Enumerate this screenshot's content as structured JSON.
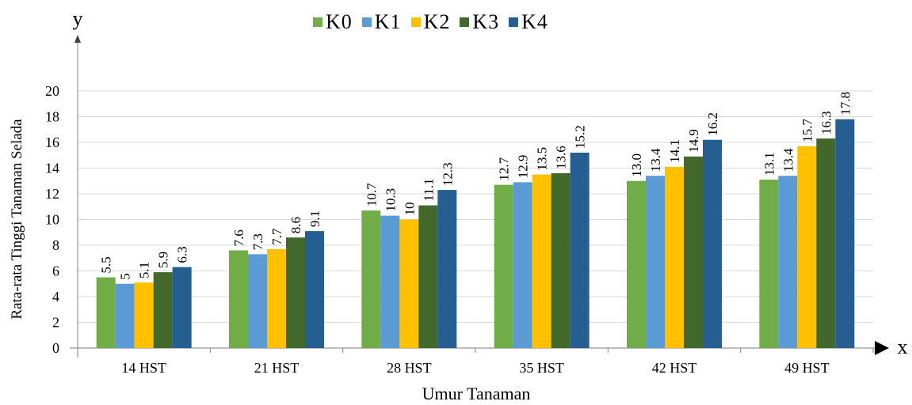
{
  "chart_data": {
    "type": "bar",
    "title": "",
    "xlabel": "Umur Tanaman",
    "ylabel": "Rata-rata Tinggi Tanaman Selada",
    "x_axis_letter": "x",
    "y_axis_letter": "y",
    "categories": [
      "14 HST",
      "21 HST",
      "28 HST",
      "35 HST",
      "42 HST",
      "49 HST"
    ],
    "series": [
      {
        "name": "K0",
        "color": "#70ad47",
        "values": [
          5.5,
          7.6,
          10.7,
          12.7,
          13.0,
          13.1
        ],
        "labels": [
          "5.5",
          "7.6",
          "10.7",
          "12.7",
          "13.0",
          "13.1"
        ]
      },
      {
        "name": "K1",
        "color": "#5b9bd5",
        "values": [
          5,
          7.3,
          10.3,
          12.9,
          13.4,
          13.4
        ],
        "labels": [
          "5",
          "7.3",
          "10.3",
          "12.9",
          "13.4",
          "13.4"
        ]
      },
      {
        "name": "K2",
        "color": "#ffc000",
        "values": [
          5.1,
          7.7,
          10,
          13.5,
          14.1,
          15.7
        ],
        "labels": [
          "5.1",
          "7.7",
          "10",
          "13.5",
          "14.1",
          "15.7"
        ]
      },
      {
        "name": "K3",
        "color": "#43682b",
        "values": [
          5.9,
          8.6,
          11.1,
          13.6,
          14.9,
          16.3
        ],
        "labels": [
          "5.9",
          "8.6",
          "11.1",
          "13.6",
          "14.9",
          "16.3"
        ]
      },
      {
        "name": "K4",
        "color": "#255e91",
        "values": [
          6.3,
          9.1,
          12.3,
          15.2,
          16.2,
          17.8
        ],
        "labels": [
          "6.3",
          "9.1",
          "12.3",
          "15.2",
          "16.2",
          "17.8"
        ]
      }
    ],
    "ylim": [
      0,
      20
    ],
    "yticks": [
      "0",
      "2",
      "4",
      "6",
      "8",
      "10",
      "12",
      "14",
      "16",
      "18",
      "20"
    ],
    "grid": true,
    "legend_position": "top-center"
  }
}
